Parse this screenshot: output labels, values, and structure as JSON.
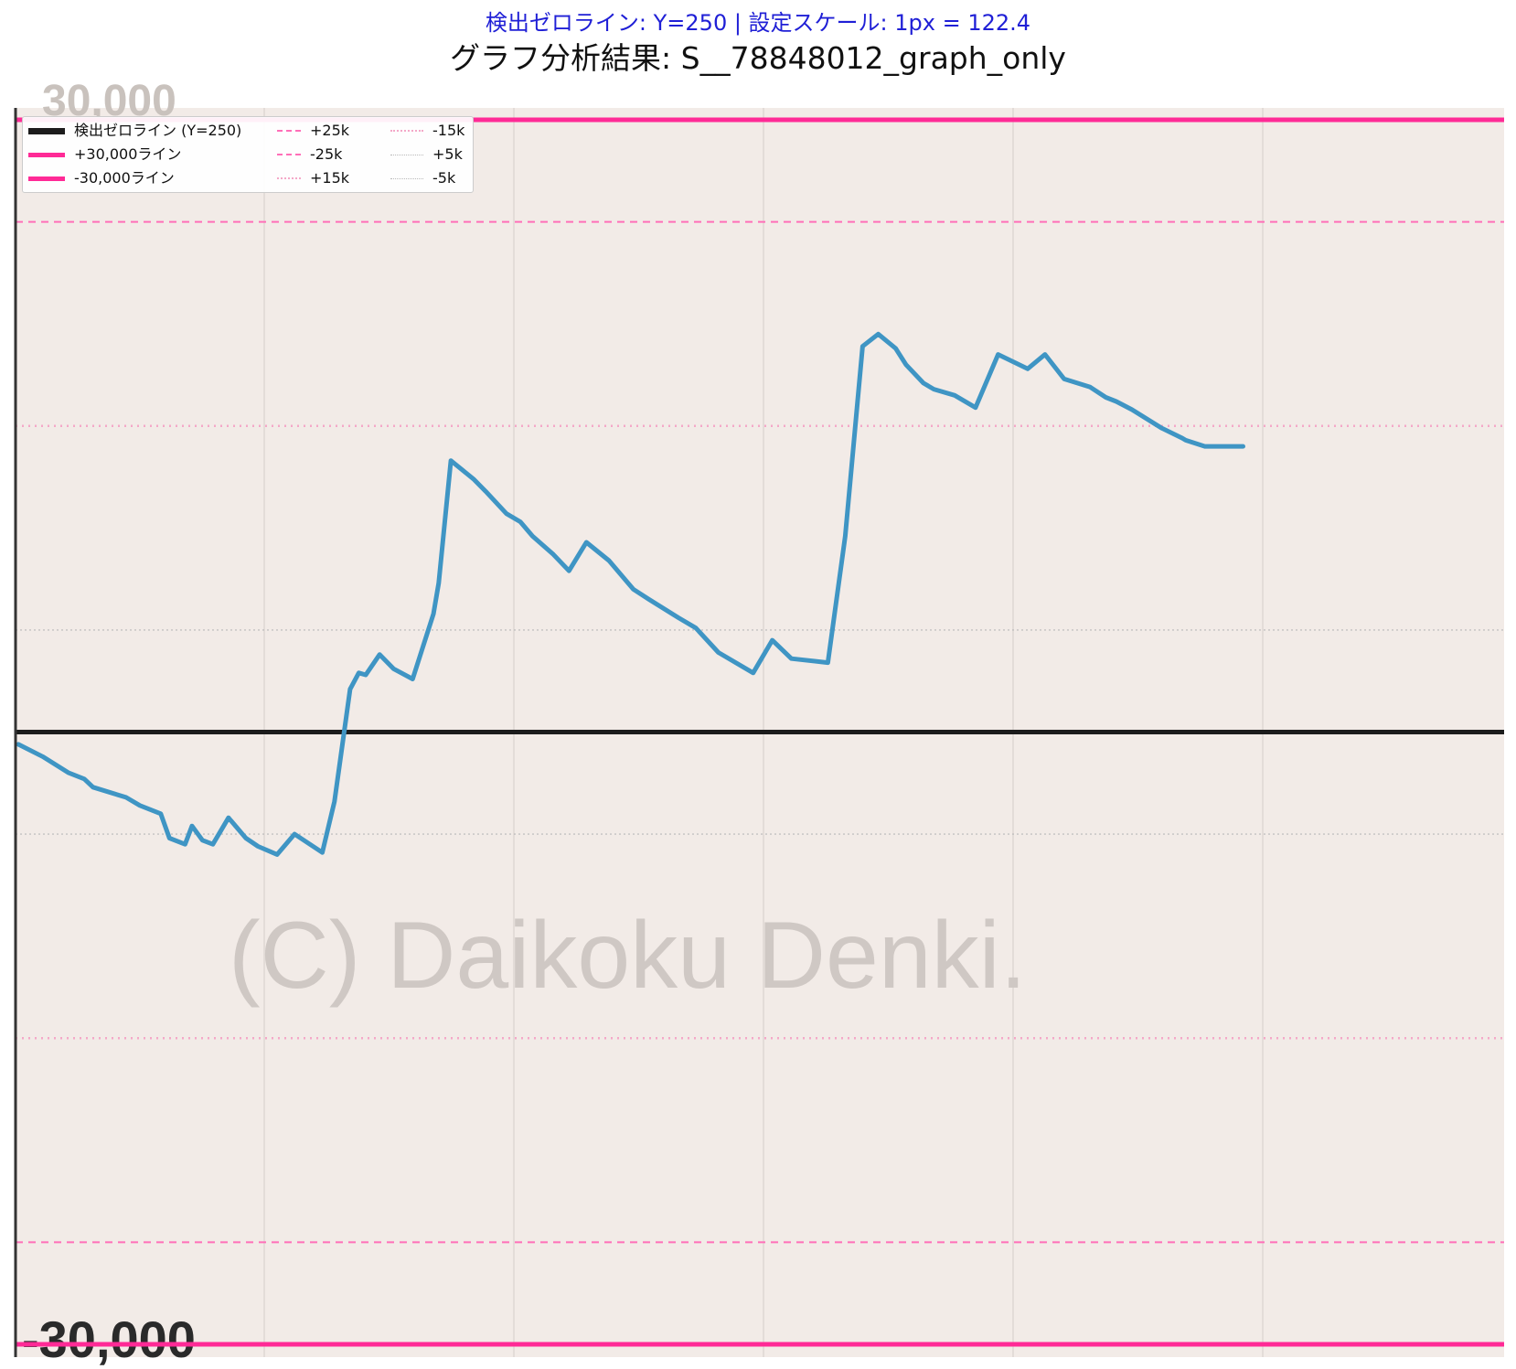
{
  "header": {
    "subtitle": "検出ゼロライン: Y=250 | 設定スケール: 1px = 122.4",
    "title": "グラフ分析結果: S__78848012_graph_only"
  },
  "watermark": "(C) Daikoku Denki.",
  "axis_labels": {
    "top": "30,000",
    "bottom": "-30,000"
  },
  "colors": {
    "background": "#f2ebe7",
    "series": "#3f95c4",
    "zero_line": "#1c1c1c",
    "limit_line": "#ff2a96",
    "dashed_line": "#ff6fb8",
    "dotted_light": "#f4a8c8",
    "dotted_gray": "#b8b8b8",
    "subtitle": "#1f1fd6"
  },
  "legend": {
    "items": [
      {
        "label": "検出ゼロライン (Y=250)",
        "style": "zero"
      },
      {
        "label": "+30,000ライン",
        "style": "limit"
      },
      {
        "label": "-30,000ライン",
        "style": "limit"
      },
      {
        "label": "+25k",
        "style": "dashed"
      },
      {
        "label": "-25k",
        "style": "dashed"
      },
      {
        "label": "+15k",
        "style": "dotted-pink"
      },
      {
        "label": "-15k",
        "style": "dotted-pink"
      },
      {
        "label": "+5k",
        "style": "dotted-gray"
      },
      {
        "label": "-5k",
        "style": "dotted-gray"
      }
    ]
  },
  "chart_data": {
    "type": "line",
    "ylim": [
      -30000,
      30000
    ],
    "grid": true,
    "legend_position": "top-left",
    "reference_lines": [
      {
        "name": "検出ゼロライン (Y=250)",
        "value": 0,
        "style": "solid-dark"
      },
      {
        "name": "+30,000ライン",
        "value": 30000,
        "style": "solid-pink"
      },
      {
        "name": "-30,000ライン",
        "value": -30000,
        "style": "solid-pink"
      },
      {
        "name": "+25k",
        "value": 25000,
        "style": "dashed"
      },
      {
        "name": "-25k",
        "value": -25000,
        "style": "dashed"
      },
      {
        "name": "+15k",
        "value": 15000,
        "style": "dotted-pink"
      },
      {
        "name": "-15k",
        "value": -15000,
        "style": "dotted-pink"
      },
      {
        "name": "+5k",
        "value": 5000,
        "style": "dotted-gray"
      },
      {
        "name": "-5k",
        "value": -5000,
        "style": "dotted-gray"
      }
    ],
    "series": [
      {
        "x": [
          0,
          14,
          29,
          38,
          43,
          62,
          70,
          82,
          87,
          96,
          100,
          106,
          112,
          121,
          131,
          138,
          149,
          159,
          175,
          182,
          191,
          196,
          200,
          208,
          216,
          227,
          239,
          242,
          249,
          262,
          269,
          281,
          289,
          296,
          308,
          317,
          327,
          340,
          348,
          354,
          363,
          380,
          390,
          403,
          423,
          434,
          445,
          466,
          476,
          486,
          495,
          505,
          511,
          521,
          527,
          539,
          551,
          564,
          581,
          591,
          602,
          617,
          626,
          632,
          641,
          658,
          670,
          672,
          683,
          687,
          692,
          705
        ],
        "values": [
          -600,
          -1200,
          -2000,
          -2300,
          -2700,
          -3200,
          -3600,
          -4000,
          -5200,
          -5500,
          -4600,
          -5300,
          -5500,
          -4200,
          -5200,
          -5600,
          -6000,
          -5000,
          -5900,
          -3400,
          2100,
          2900,
          2800,
          3800,
          3100,
          2600,
          5800,
          7300,
          13300,
          12400,
          11800,
          10700,
          10300,
          9600,
          8700,
          7900,
          9300,
          8400,
          7600,
          7000,
          6500,
          5600,
          5100,
          3900,
          2900,
          4500,
          3600,
          3400,
          9600,
          18900,
          19500,
          18800,
          18000,
          17100,
          16800,
          16500,
          15900,
          18500,
          17800,
          18500,
          17300,
          16900,
          16400,
          16200,
          15800,
          14900,
          14400,
          14300,
          14000,
          14000,
          14000,
          14000
        ]
      }
    ]
  }
}
